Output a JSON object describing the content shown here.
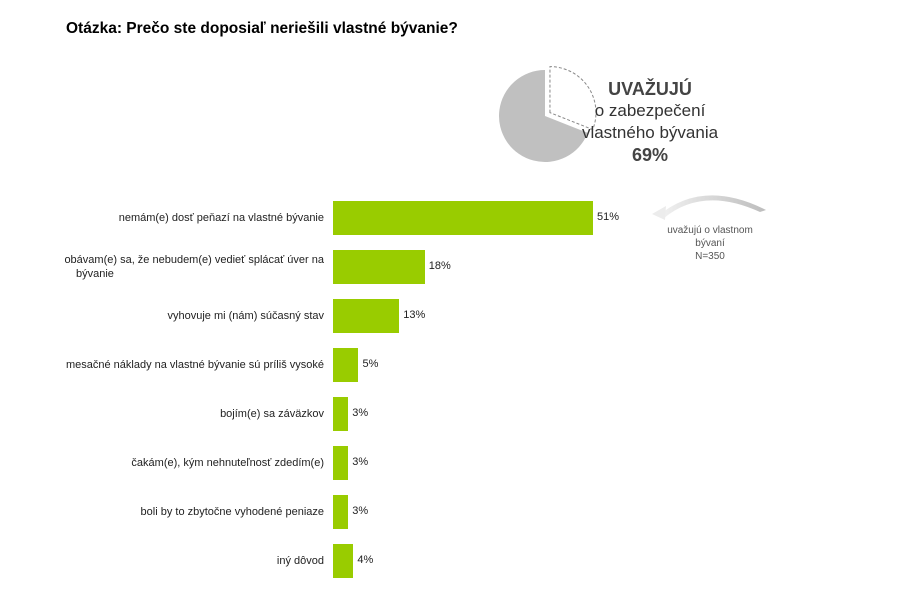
{
  "question": "Otázka: Prečo ste doposiaľ neriešili vlastné bývanie?",
  "pie": {
    "line1": "UVAŽUJÚ",
    "line2": "o zabezpečení",
    "line3": "vlastného bývania",
    "value_label": "69%",
    "share": 69,
    "fill_color": "#c0c0c0"
  },
  "side_note": {
    "line1": "uvažujú o vlastnom",
    "line2": "bývaní",
    "line3": "N=350"
  },
  "chart_data": {
    "type": "bar",
    "orientation": "horizontal",
    "categories": [
      [
        "nemám(e)  dosť peňazí na vlastné bývanie"
      ],
      [
        "obávam(e) sa, že nebudem(e)  vedieť splácať úver na",
        "bývanie"
      ],
      [
        "vyhovuje mi (nám) súčasný stav"
      ],
      [
        "mesačné náklady na vlastné bývanie sú príliš vysoké"
      ],
      [
        "bojím(e) sa záväzkov"
      ],
      [
        "čakám(e),  kým nehnuteľnosť zdedím(e)"
      ],
      [
        "boli by to zbytočne vyhodené peniaze"
      ],
      [
        "iný dôvod"
      ]
    ],
    "values": [
      51,
      18,
      13,
      5,
      3,
      3,
      3,
      4
    ],
    "value_labels": [
      "51%",
      "18%",
      "13%",
      "5%",
      "3%",
      "3%",
      "3%",
      "4%"
    ],
    "bar_color": "#99cc00",
    "grid": false,
    "legend": false
  }
}
